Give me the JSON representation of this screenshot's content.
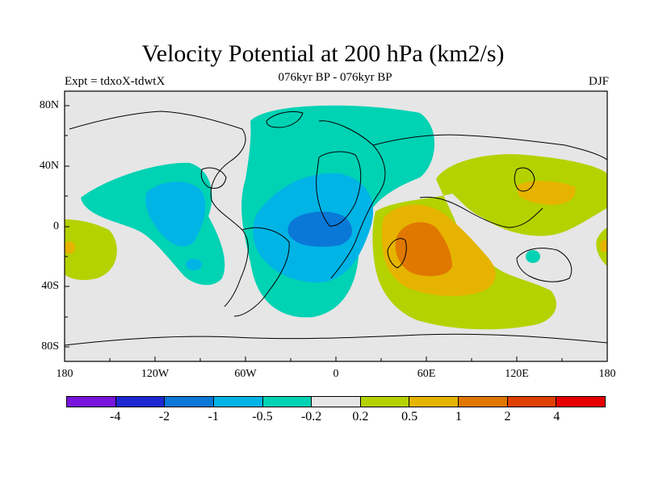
{
  "title": "Velocity Potential at 200 hPa (km2/s)",
  "subtitle_left": "Expt = tdxoX-tdwtX",
  "subtitle_center": "076kyr BP - 076kyr BP",
  "subtitle_right": "DJF",
  "lat_labels": [
    "80N",
    "40N",
    "0",
    "40S",
    "80S"
  ],
  "lon_labels": [
    "180",
    "120W",
    "60W",
    "0",
    "60E",
    "120E",
    "180"
  ],
  "colors": {
    "land_background": "#e6e6e6",
    "neg_strong": "#0a78d6",
    "neg_mid": "#00b4e6",
    "neg_weak": "#00d2b4",
    "pos_weak": "#b4d200",
    "pos_mid": "#e6b400",
    "pos_strong": "#e07800",
    "coastline": "#000000"
  },
  "colorbar": {
    "colors": [
      "#7814dc",
      "#1e28d2",
      "#0a78d6",
      "#00b4e6",
      "#00d2b4",
      "#e6e6e6",
      "#b4d200",
      "#e6b400",
      "#e07800",
      "#e04000",
      "#e60000"
    ],
    "labels": [
      "-4",
      "-2",
      "-1",
      "-0.5",
      "-0.2",
      "0.2",
      "0.5",
      "1",
      "2",
      "4"
    ]
  }
}
